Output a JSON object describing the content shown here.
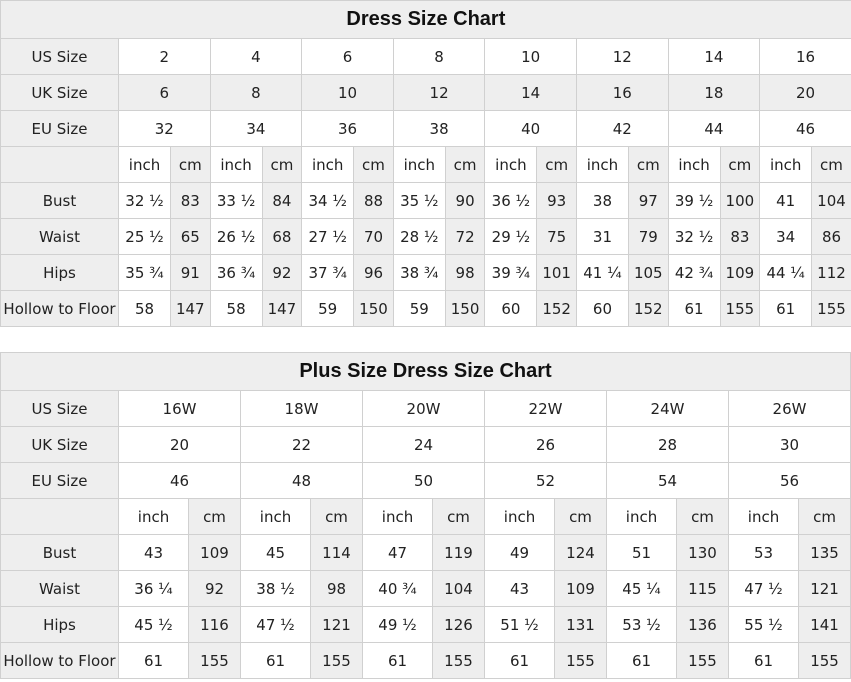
{
  "colors": {
    "header_bg": "#eeeeee",
    "border": "#d0d0d0",
    "cell_bg": "#ffffff"
  },
  "dress_chart": {
    "title": "Dress Size Chart",
    "size_rows": [
      {
        "label": "US Size",
        "values": [
          "2",
          "4",
          "6",
          "8",
          "10",
          "12",
          "14",
          "16"
        ]
      },
      {
        "label": "UK Size",
        "values": [
          "6",
          "8",
          "10",
          "12",
          "14",
          "16",
          "18",
          "20"
        ]
      },
      {
        "label": "EU Size",
        "values": [
          "32",
          "34",
          "36",
          "38",
          "40",
          "42",
          "44",
          "46"
        ]
      }
    ],
    "unit_inch": "inch",
    "unit_cm": "cm",
    "measure_rows": [
      {
        "label": "Bust",
        "values": [
          "32 ½",
          "83",
          "33 ½",
          "84",
          "34 ½",
          "88",
          "35 ½",
          "90",
          "36 ½",
          "93",
          "38",
          "97",
          "39 ½",
          "100",
          "41",
          "104"
        ]
      },
      {
        "label": "Waist",
        "values": [
          "25 ½",
          "65",
          "26 ½",
          "68",
          "27 ½",
          "70",
          "28 ½",
          "72",
          "29 ½",
          "75",
          "31",
          "79",
          "32 ½",
          "83",
          "34",
          "86"
        ]
      },
      {
        "label": "Hips",
        "values": [
          "35 ¾",
          "91",
          "36 ¾",
          "92",
          "37 ¾",
          "96",
          "38 ¾",
          "98",
          "39 ¾",
          "101",
          "41 ¼",
          "105",
          "42 ¾",
          "109",
          "44 ¼",
          "112"
        ]
      },
      {
        "label": "Hollow to Floor",
        "values": [
          "58",
          "147",
          "58",
          "147",
          "59",
          "150",
          "59",
          "150",
          "60",
          "152",
          "60",
          "152",
          "61",
          "155",
          "61",
          "155"
        ]
      }
    ]
  },
  "plus_chart": {
    "title": "Plus Size Dress Size Chart",
    "size_rows": [
      {
        "label": "US Size",
        "values": [
          "16W",
          "18W",
          "20W",
          "22W",
          "24W",
          "26W"
        ]
      },
      {
        "label": "UK Size",
        "values": [
          "20",
          "22",
          "24",
          "26",
          "28",
          "30"
        ]
      },
      {
        "label": "EU Size",
        "values": [
          "46",
          "48",
          "50",
          "52",
          "54",
          "56"
        ]
      }
    ],
    "unit_inch": "inch",
    "unit_cm": "cm",
    "measure_rows": [
      {
        "label": "Bust",
        "values": [
          "43",
          "109",
          "45",
          "114",
          "47",
          "119",
          "49",
          "124",
          "51",
          "130",
          "53",
          "135"
        ]
      },
      {
        "label": "Waist",
        "values": [
          "36 ¼",
          "92",
          "38 ½",
          "98",
          "40 ¾",
          "104",
          "43",
          "109",
          "45 ¼",
          "115",
          "47 ½",
          "121"
        ]
      },
      {
        "label": "Hips",
        "values": [
          "45 ½",
          "116",
          "47 ½",
          "121",
          "49 ½",
          "126",
          "51 ½",
          "131",
          "53 ½",
          "136",
          "55 ½",
          "141"
        ]
      },
      {
        "label": "Hollow to Floor",
        "values": [
          "61",
          "155",
          "61",
          "155",
          "61",
          "155",
          "61",
          "155",
          "61",
          "155",
          "61",
          "155"
        ]
      }
    ]
  }
}
